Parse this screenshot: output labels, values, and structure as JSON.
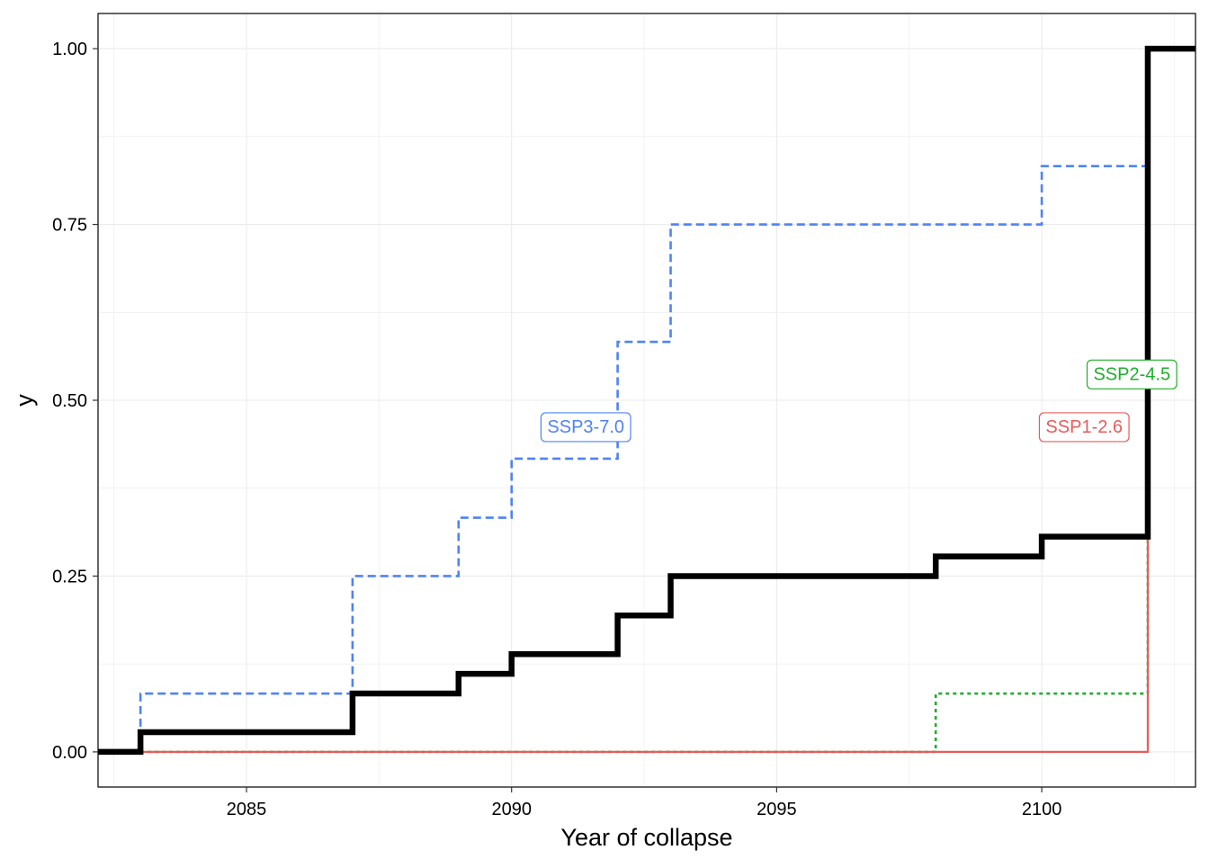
{
  "chart_data": {
    "type": "line",
    "step": true,
    "xlabel": "Year of collapse",
    "ylabel": "y",
    "xlim": [
      2082.2,
      2102.9
    ],
    "ylim": [
      -0.05,
      1.05
    ],
    "x_ticks": [
      2085,
      2090,
      2095,
      2100
    ],
    "x_tick_labels": [
      "2085",
      "2090",
      "2095",
      "2100"
    ],
    "y_ticks": [
      0,
      0.25,
      0.5,
      0.75,
      1
    ],
    "y_tick_labels": [
      "0.00",
      "0.25",
      "0.50",
      "0.75",
      "1.00"
    ],
    "grid": true,
    "legend": "none",
    "series": [
      {
        "name": "SSP3-7.0",
        "color": "#4f83f4",
        "line_style": "dashed",
        "x": [
          2083,
          2087,
          2089,
          2090,
          2092,
          2093,
          2100,
          2102
        ],
        "y": [
          0.083,
          0.25,
          0.333,
          0.417,
          0.583,
          0.75,
          0.833,
          0.833
        ]
      },
      {
        "name": "SSP2-4.5",
        "color": "#1fae2c",
        "line_style": "dotted",
        "x": [
          2083,
          2098,
          2102
        ],
        "y": [
          0,
          0.083,
          0.306
        ]
      },
      {
        "name": "SSP1-2.6",
        "color": "#ea5b5b",
        "line_style": "solid",
        "x": [
          2083,
          2102
        ],
        "y": [
          0,
          0.306
        ]
      },
      {
        "color": "#000000",
        "line_style": "solid-thick",
        "x": [
          2082.2,
          2083,
          2087,
          2089,
          2090,
          2092,
          2093,
          2098,
          2100,
          2102,
          2102.9
        ],
        "y": [
          0,
          0.028,
          0.083,
          0.111,
          0.139,
          0.194,
          0.25,
          0.278,
          0.306,
          1.0,
          1.0
        ]
      }
    ],
    "annotations": [
      {
        "text": "SSP3-7.0",
        "x": 2091.4,
        "y": 0.463,
        "color": "#4f83f4"
      },
      {
        "text": "SSP2-4.5",
        "x": 2101.7,
        "y": 0.538,
        "color": "#1fae2c"
      },
      {
        "text": "SSP1-2.6",
        "x": 2100.8,
        "y": 0.463,
        "color": "#ea5b5b"
      }
    ],
    "colors": {
      "grid": "#ebebeb",
      "panel_border": "#000000",
      "background": "#ffffff"
    }
  }
}
